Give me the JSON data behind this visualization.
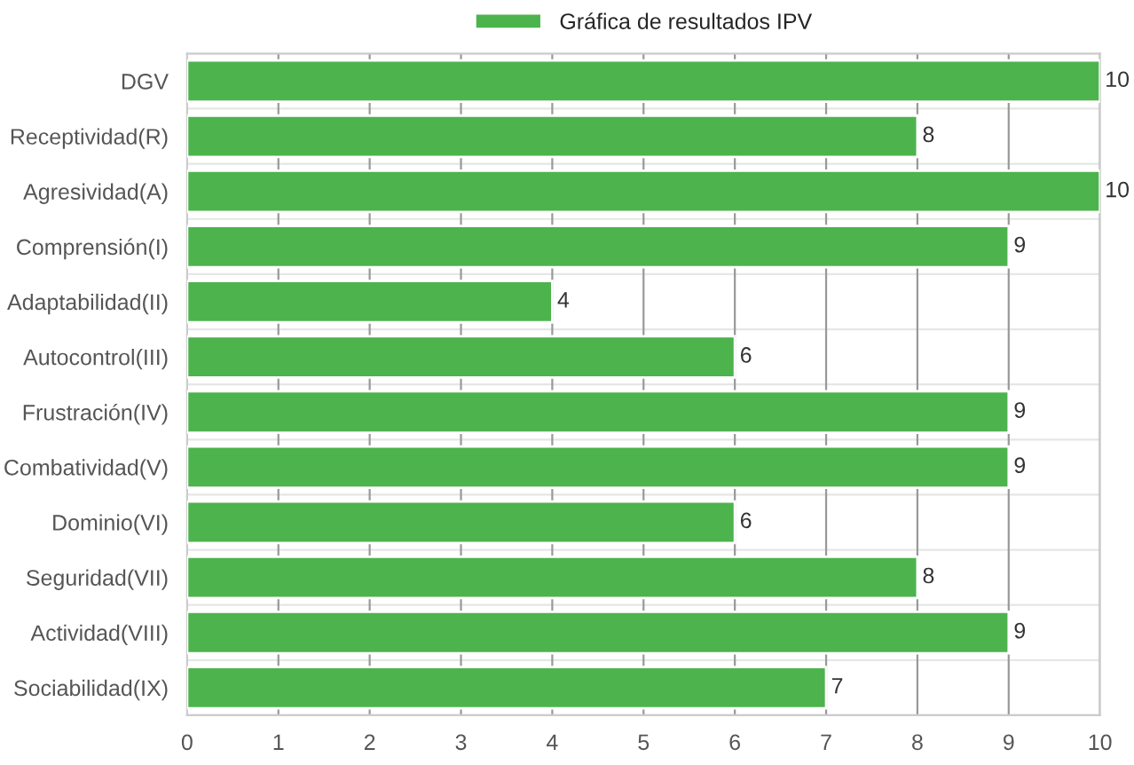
{
  "chart_data": {
    "type": "bar",
    "orientation": "horizontal",
    "categories": [
      "DGV",
      "Receptividad(R)",
      "Agresividad(A)",
      "Comprensión(I)",
      "Adaptabilidad(II)",
      "Autocontrol(III)",
      "Frustración(IV)",
      "Combatividad(V)",
      "Dominio(VI)",
      "Seguridad(VII)",
      "Actividad(VIII)",
      "Sociabilidad(IX)"
    ],
    "series": [
      {
        "name": "Gráfica de resultados IPV",
        "color": "#4db34d",
        "values": [
          10,
          8,
          10,
          9,
          4,
          6,
          9,
          9,
          6,
          8,
          9,
          7
        ]
      }
    ],
    "xlim": [
      0,
      10
    ],
    "xticks": [
      0,
      1,
      2,
      3,
      4,
      5,
      6,
      7,
      8,
      9,
      10
    ],
    "data_labels": true,
    "grid": true,
    "legend": "top"
  }
}
